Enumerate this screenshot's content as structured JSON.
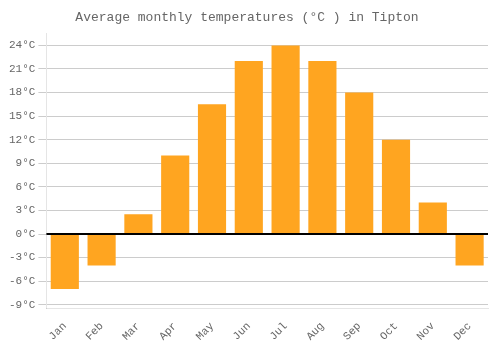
{
  "chart_data": {
    "type": "bar",
    "title": "Average monthly temperatures (°C ) in Tipton",
    "categories": [
      "Jan",
      "Feb",
      "Mar",
      "Apr",
      "May",
      "Jun",
      "Jul",
      "Aug",
      "Sep",
      "Oct",
      "Nov",
      "Dec"
    ],
    "values": [
      -7,
      -4,
      2.5,
      10,
      16.5,
      22,
      24,
      22,
      18,
      12,
      4,
      -4
    ],
    "color": "#FFA520",
    "ylim": [
      -9.5,
      25.5
    ],
    "yticks": [
      {
        "value": -9,
        "label": "-9°C"
      },
      {
        "value": -6,
        "label": "-6°C"
      },
      {
        "value": -3,
        "label": "-3°C"
      },
      {
        "value": 0,
        "label": "0°C"
      },
      {
        "value": 3,
        "label": "3°C"
      },
      {
        "value": 6,
        "label": "6°C"
      },
      {
        "value": 9,
        "label": "9°C"
      },
      {
        "value": 12,
        "label": "12°C"
      },
      {
        "value": 15,
        "label": "15°C"
      },
      {
        "value": 18,
        "label": "18°C"
      },
      {
        "value": 21,
        "label": "21°C"
      },
      {
        "value": 24,
        "label": "24°C"
      }
    ],
    "grid": true
  }
}
